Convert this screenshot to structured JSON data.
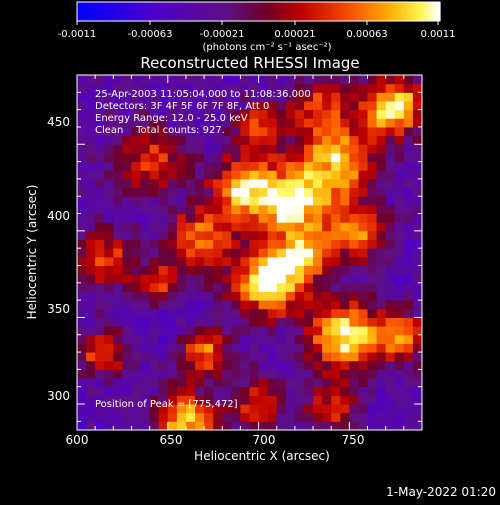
{
  "chart_data": {
    "type": "heatmap",
    "title": "Reconstructed RHESSI Image",
    "xlabel": "Heliocentric X (arcsec)",
    "ylabel": "Heliocentric Y (arcsec)",
    "xlim": [
      600,
      790
    ],
    "ylim": [
      285,
      490
    ],
    "x_ticks": [
      600,
      650,
      700,
      750
    ],
    "y_ticks": [
      300,
      350,
      400,
      450
    ],
    "colorbar": {
      "range": [
        -0.0011,
        0.0011
      ],
      "tick_labels": [
        "-0.0011",
        "-0.00063",
        "-0.00021",
        "0.00021",
        "0.00063",
        "0.0011"
      ],
      "label": "(photons cm⁻² s⁻¹ asec⁻²)"
    },
    "annotations": [
      "25-Apr-2003 11:05:04.000 to 11:08:36.000",
      "Detectors: 3F 4F 5F 6F 7F 8F, Att 0",
      "Energy Range: 12.0 - 25.0 keV",
      "Clean    Total counts: 927."
    ],
    "peak_label": "Position of Peak = [775,472]",
    "peak_position": [
      775,
      472
    ],
    "sources": [
      {
        "x": 705,
        "y": 370,
        "peak": 0.0011,
        "size": 14
      },
      {
        "x": 718,
        "y": 417,
        "peak": 0.00105,
        "size": 16
      },
      {
        "x": 748,
        "y": 340,
        "peak": 0.0011,
        "size": 14
      },
      {
        "x": 775,
        "y": 472,
        "peak": 0.0011,
        "size": 12
      },
      {
        "x": 668,
        "y": 395,
        "peak": 0.0007,
        "size": 12
      },
      {
        "x": 690,
        "y": 425,
        "peak": 0.0007,
        "size": 12
      },
      {
        "x": 745,
        "y": 440,
        "peak": 0.00075,
        "size": 14
      },
      {
        "x": 755,
        "y": 400,
        "peak": 0.0006,
        "size": 12
      },
      {
        "x": 660,
        "y": 290,
        "peak": 0.0009,
        "size": 12
      },
      {
        "x": 615,
        "y": 385,
        "peak": 0.0005,
        "size": 12
      },
      {
        "x": 645,
        "y": 368,
        "peak": 0.0005,
        "size": 10
      },
      {
        "x": 670,
        "y": 330,
        "peak": 0.0006,
        "size": 10
      },
      {
        "x": 615,
        "y": 330,
        "peak": 0.0005,
        "size": 10
      },
      {
        "x": 780,
        "y": 340,
        "peak": 0.0006,
        "size": 10
      },
      {
        "x": 740,
        "y": 298,
        "peak": 0.0004,
        "size": 10
      },
      {
        "x": 640,
        "y": 440,
        "peak": 0.00045,
        "size": 14
      },
      {
        "x": 725,
        "y": 385,
        "peak": 0.0006,
        "size": 10
      },
      {
        "x": 735,
        "y": 470,
        "peak": 0.0005,
        "size": 12
      },
      {
        "x": 700,
        "y": 300,
        "peak": 0.0004,
        "size": 10
      },
      {
        "x": 700,
        "y": 460,
        "peak": 0.00045,
        "size": 10
      },
      {
        "x": 630,
        "y": 300,
        "peak": -0.0004,
        "size": 10
      },
      {
        "x": 650,
        "y": 355,
        "peak": -0.0006,
        "size": 14
      },
      {
        "x": 625,
        "y": 360,
        "peak": -0.00045,
        "size": 12
      },
      {
        "x": 760,
        "y": 375,
        "peak": -0.0004,
        "size": 10
      }
    ],
    "background": -0.0004
  },
  "footer": {
    "date": "1-May-2022 01:20"
  }
}
